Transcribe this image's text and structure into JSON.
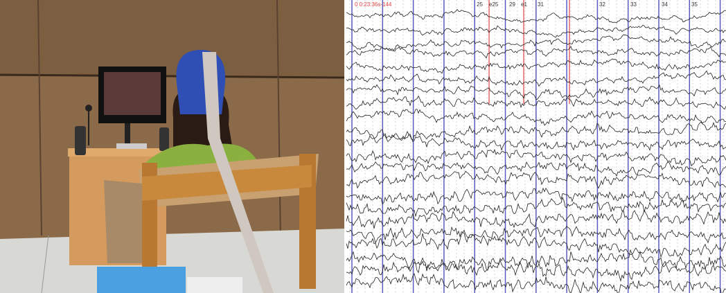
{
  "eeg": {
    "markers": [
      "0 0:23:36s-144",
      "25",
      "e25",
      "29",
      "e1",
      "31",
      "32",
      "33",
      "34",
      "35"
    ]
  }
}
